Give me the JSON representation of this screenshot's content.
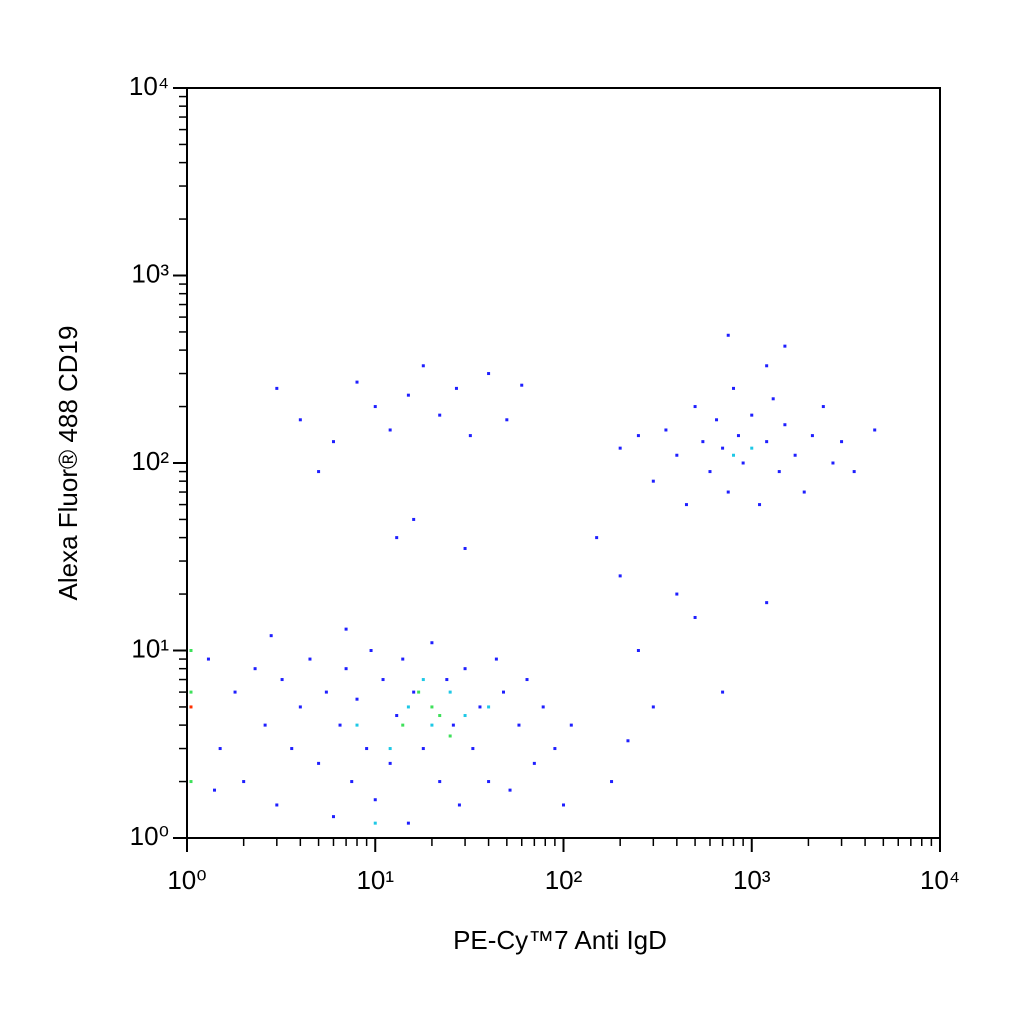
{
  "chart_data": {
    "type": "scatter",
    "x_label": "PE-Cy™7 Anti IgD",
    "y_label": "Alexa Fluor® 488 CD19",
    "xscale": "log",
    "yscale": "log",
    "xlim": [
      1,
      10000
    ],
    "ylim": [
      1,
      10000
    ],
    "xticks": [
      {
        "value": 1,
        "label": "10⁰"
      },
      {
        "value": 10,
        "label": "10¹"
      },
      {
        "value": 100,
        "label": "10²"
      },
      {
        "value": 1000,
        "label": "10³"
      },
      {
        "value": 10000,
        "label": "10⁴"
      }
    ],
    "yticks": [
      {
        "value": 1,
        "label": "10⁰"
      },
      {
        "value": 10,
        "label": "10¹"
      },
      {
        "value": 100,
        "label": "10²"
      },
      {
        "value": 1000,
        "label": "10³"
      },
      {
        "value": 10000,
        "label": "10⁴"
      }
    ],
    "series": [
      {
        "color": "#1f1fff",
        "x": [
          1.5,
          1.8,
          2,
          2.3,
          2.6,
          3,
          3.2,
          3.6,
          4,
          4.5,
          5,
          5.5,
          6,
          6.5,
          7,
          7.5,
          8,
          9,
          9.5,
          10,
          11,
          12,
          13,
          14,
          15,
          16,
          18,
          20,
          22,
          24,
          26,
          28,
          30,
          33,
          36,
          40,
          44,
          48,
          52,
          58,
          64,
          70,
          78,
          90,
          100,
          110,
          2.8,
          7,
          1.3,
          1.4,
          300,
          350,
          400,
          450,
          500,
          550,
          600,
          650,
          700,
          750,
          800,
          850,
          900,
          1000,
          1100,
          1200,
          1300,
          1400,
          1500,
          1700,
          1900,
          2100,
          2400,
          2700,
          3000,
          3500,
          4500,
          250,
          200,
          750,
          1500,
          1200,
          3,
          4,
          6,
          8,
          10,
          12,
          15,
          18,
          22,
          27,
          32,
          40,
          50,
          60,
          5,
          13,
          16,
          30,
          150,
          200,
          250,
          300,
          500,
          700,
          400,
          1200,
          180,
          220
        ],
        "y": [
          3,
          6,
          2,
          8,
          4,
          1.5,
          7,
          3,
          5,
          9,
          2.5,
          6,
          1.3,
          4,
          8,
          2,
          5.5,
          3,
          10,
          1.6,
          7,
          2.5,
          4.5,
          9,
          1.2,
          6,
          3,
          11,
          2,
          7,
          4,
          1.5,
          8,
          3,
          5,
          2,
          9,
          6,
          1.8,
          4,
          7,
          2.5,
          5,
          3,
          1.5,
          4,
          12,
          13,
          9,
          1.8,
          80,
          150,
          110,
          60,
          200,
          130,
          90,
          170,
          120,
          70,
          250,
          140,
          100,
          180,
          60,
          130,
          220,
          90,
          160,
          110,
          70,
          140,
          200,
          100,
          130,
          90,
          150,
          140,
          120,
          480,
          420,
          330,
          250,
          170,
          130,
          270,
          200,
          150,
          230,
          330,
          180,
          250,
          140,
          300,
          170,
          260,
          90,
          40,
          50,
          35,
          40,
          25,
          10,
          5,
          15,
          6,
          20,
          18,
          2,
          3.3
        ]
      },
      {
        "color": "#1ec8e6",
        "x": [
          15,
          20,
          25,
          12,
          30,
          18,
          8,
          1000,
          800,
          10,
          40
        ],
        "y": [
          5,
          4,
          6,
          3,
          4.5,
          7,
          4,
          120,
          110,
          1.2,
          5
        ]
      },
      {
        "color": "#3ee05a",
        "x": [
          20,
          22,
          17,
          25,
          14,
          1.05,
          1.05,
          1.05
        ],
        "y": [
          5,
          4.5,
          6,
          3.5,
          4,
          2,
          6,
          10
        ]
      },
      {
        "color": "#ff3000",
        "x": [
          1.05
        ],
        "y": [
          5
        ]
      }
    ]
  }
}
